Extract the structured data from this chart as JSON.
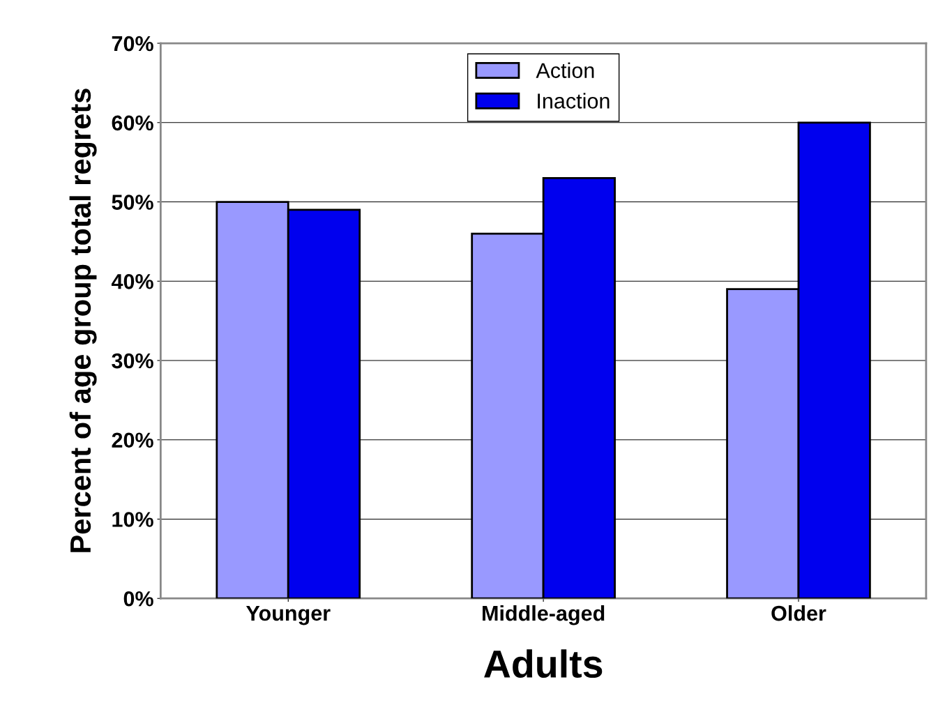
{
  "chart_data": {
    "type": "bar",
    "xlabel": "Adults",
    "ylabel": "Percent of age group total regrets",
    "categories": [
      "Younger",
      "Middle-aged",
      "Older"
    ],
    "series": [
      {
        "name": "Action",
        "color": "#9999ff",
        "values": [
          50,
          46,
          39
        ]
      },
      {
        "name": "Inaction",
        "color": "#0000ee",
        "values": [
          49,
          53,
          60
        ]
      }
    ],
    "ylim": [
      0,
      70
    ],
    "yticks": [
      {
        "value": 0,
        "label": "0%"
      },
      {
        "value": 10,
        "label": "10%"
      },
      {
        "value": 20,
        "label": "20%"
      },
      {
        "value": 30,
        "label": "30%"
      },
      {
        "value": 40,
        "label": "40%"
      },
      {
        "value": 50,
        "label": "50%"
      },
      {
        "value": 60,
        "label": "60%"
      },
      {
        "value": 70,
        "label": "70%"
      }
    ],
    "grid": "y",
    "legend": "top"
  }
}
